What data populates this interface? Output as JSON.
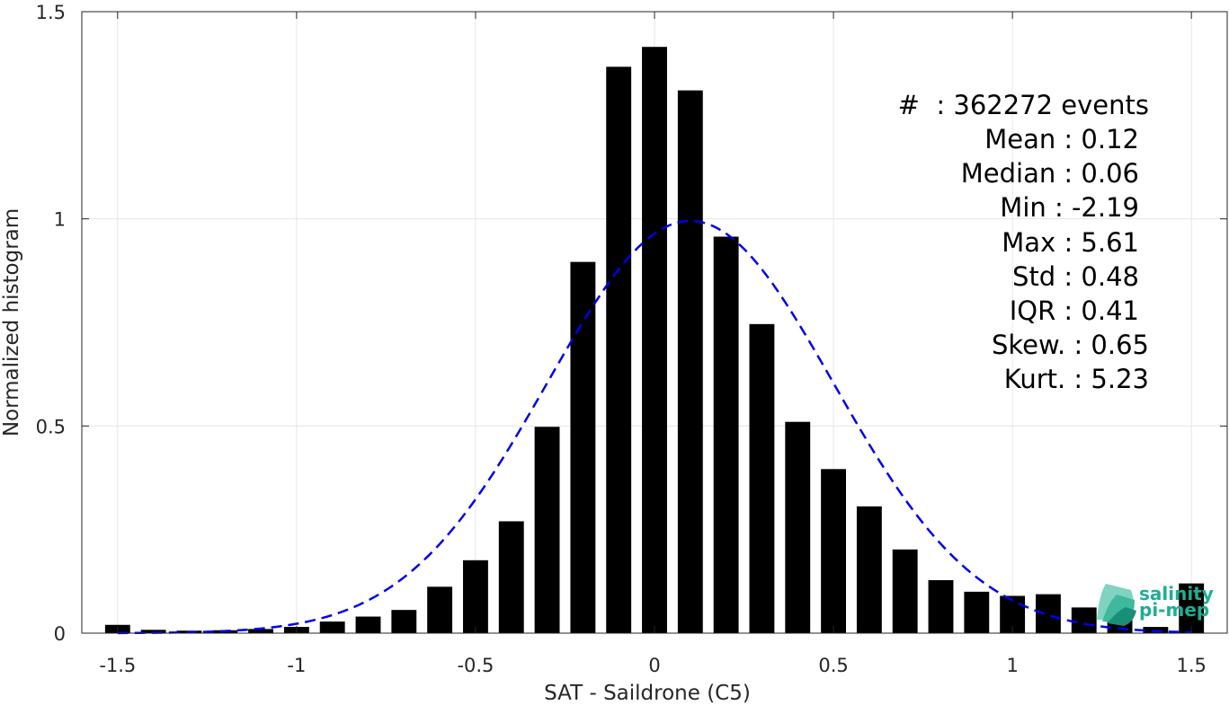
{
  "chart_data": {
    "type": "bar",
    "xlabel": "SAT - Saildrone (C5)",
    "ylabel": "Normalized histogram",
    "xlim": [
      -1.6,
      1.6
    ],
    "ylim": [
      0,
      1.5
    ],
    "xticks": [
      "-1.5",
      "-1",
      "-0.5",
      "0",
      "0.5",
      "1",
      "1.5"
    ],
    "xtick_values": [
      -1.5,
      -1,
      -0.5,
      0,
      0.5,
      1,
      1.5
    ],
    "yticks": [
      "0",
      "0.5",
      "1",
      "1.5"
    ],
    "ytick_values": [
      0,
      0.5,
      1,
      1.5
    ],
    "grid": true,
    "bar_color": "#000000",
    "bin_width": 0.1,
    "bins": [
      -1.5,
      -1.4,
      -1.3,
      -1.2,
      -1.1,
      -1.0,
      -0.9,
      -0.8,
      -0.7,
      -0.6,
      -0.5,
      -0.4,
      -0.3,
      -0.2,
      -0.1,
      0.0,
      0.1,
      0.2,
      0.3,
      0.4,
      0.5,
      0.6,
      0.7,
      0.8,
      0.9,
      1.0,
      1.1,
      1.2,
      1.3,
      1.4,
      1.5
    ],
    "values": [
      0.02,
      0.008,
      0.006,
      0.007,
      0.01,
      0.015,
      0.028,
      0.04,
      0.056,
      0.112,
      0.176,
      0.27,
      0.498,
      0.896,
      1.367,
      1.415,
      1.31,
      0.957,
      0.746,
      0.51,
      0.396,
      0.306,
      0.202,
      0.128,
      0.1,
      0.09,
      0.094,
      0.062,
      0.04,
      0.015,
      0.12
    ],
    "fit_curve": {
      "color": "#0000ee",
      "style": "dashed",
      "mean": 0.1,
      "std": 0.4,
      "peak": 0.995
    },
    "stats_lines": [
      "#  : 362272 events",
      "Mean : 0.12",
      "Median : 0.06",
      "Min : -2.19",
      "Max : 5.61",
      "Std : 0.48",
      "IQR : 0.41",
      "Skew. : 0.65",
      "Kurt. : 5.23"
    ]
  },
  "logo": {
    "line1": "salinity",
    "line2": "pi-mep",
    "color": "#1fae93"
  }
}
